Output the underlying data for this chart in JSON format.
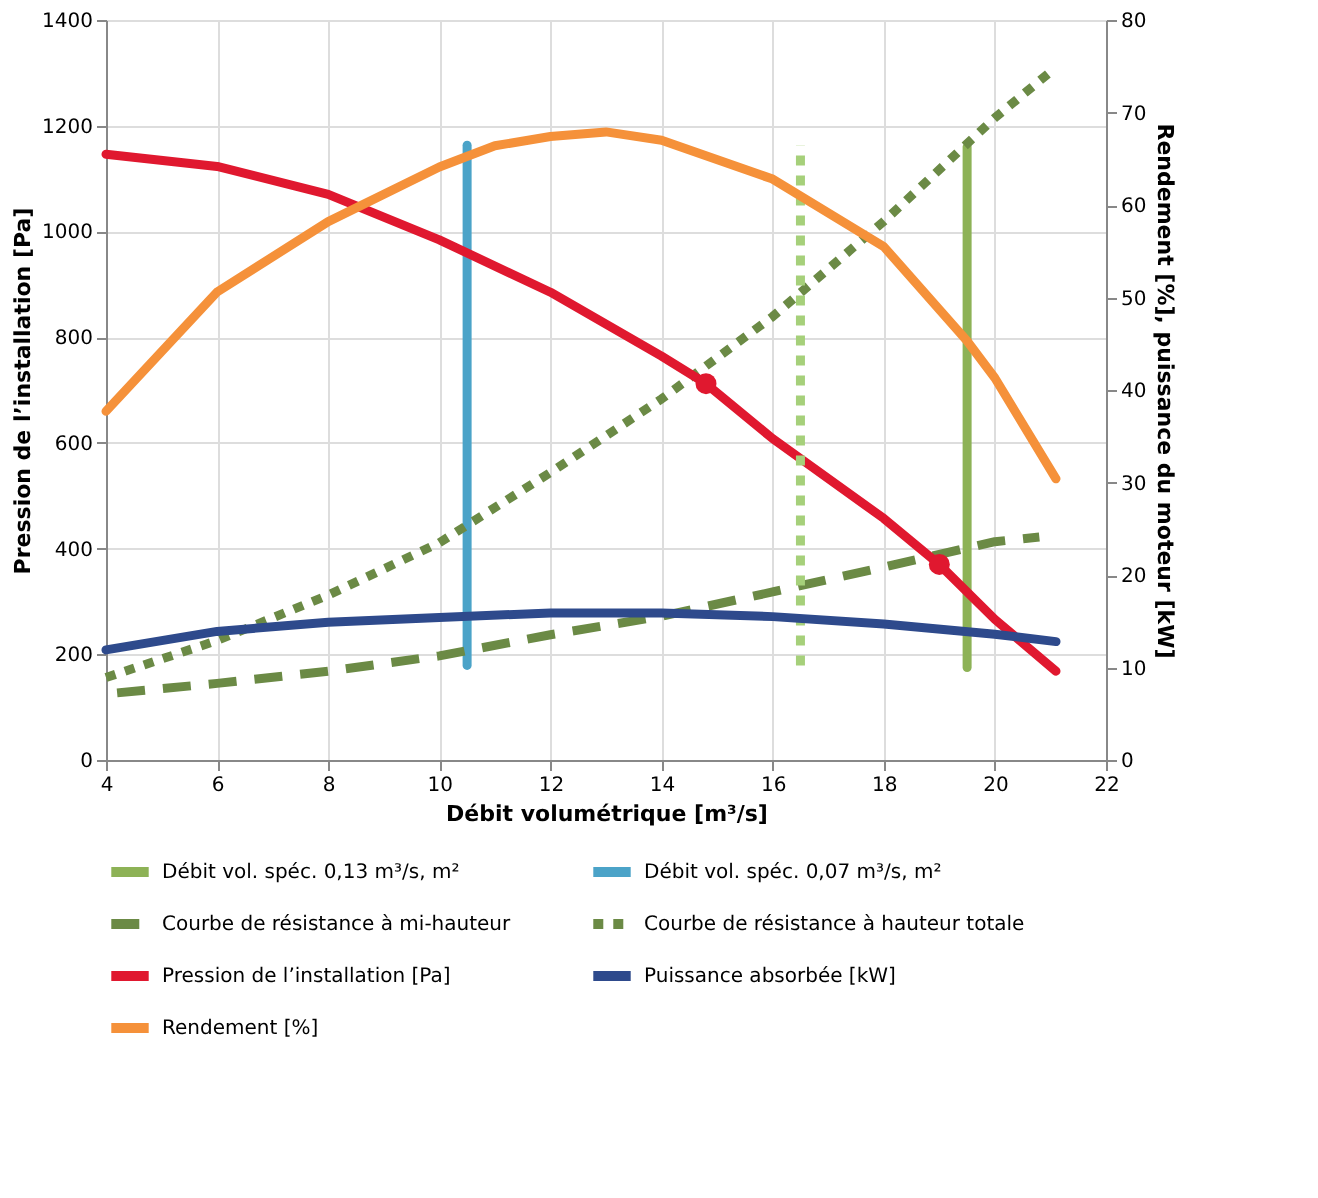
{
  "chart_data": {
    "type": "line",
    "xlabel": "Débit volumétrique [m³/s]",
    "ylabel": "Pression de l’installation [Pa]",
    "y2label": "Rendement [%], puissance du moteur [kW]",
    "xlim": [
      4,
      22
    ],
    "xticks": [
      4,
      6,
      8,
      10,
      12,
      14,
      16,
      18,
      20,
      22
    ],
    "ylim": [
      0,
      1400
    ],
    "yticks": [
      0,
      200,
      400,
      600,
      800,
      1000,
      1200,
      1400
    ],
    "y2lim": [
      0,
      80
    ],
    "y2ticks": [
      0,
      10,
      20,
      30,
      40,
      50,
      60,
      70,
      80
    ],
    "grid": true,
    "legend": "bottom",
    "series": [
      {
        "name": "Débit vol. spéc. 0,13 m³/s, m²",
        "color": "#8db256",
        "line_style": "solid",
        "x": [
          19.5,
          19.5
        ],
        "values": [
          175,
          1160
        ]
      },
      {
        "name": "Débit vol. spéc. 0,07 m³/s, m²",
        "color": "#4ba3c8",
        "line_style": "solid",
        "x": [
          10.5,
          10.5
        ],
        "values": [
          179,
          1163
        ]
      },
      {
        "name": "Courbe de résistance à mi-hauteur",
        "color": "#6b8a45",
        "line_style": "dashed",
        "x": [
          4.2,
          6,
          8,
          10,
          12,
          14,
          16,
          18,
          20,
          20.8
        ],
        "values": [
          127,
          145,
          168,
          197,
          237,
          272,
          318,
          365,
          413,
          422
        ]
      },
      {
        "name": "Courbe de résistance à hauteur totale",
        "color": "#6b8a45",
        "line_style": "dotted",
        "x": [
          4,
          6,
          8,
          10,
          12,
          14,
          16,
          18,
          20,
          21
        ],
        "values": [
          156,
          226,
          312,
          411,
          544,
          683,
          839,
          1019,
          1215,
          1302
        ]
      },
      {
        "name": "Pression de l’installation [Pa]",
        "color": "#e0182f",
        "line_style": "solid",
        "x": [
          4,
          6,
          8,
          10,
          12,
          14,
          14.8,
          16,
          18,
          19,
          20,
          21.1
        ],
        "values": [
          1146,
          1123,
          1070,
          984,
          885,
          764,
          712,
          608,
          457,
          370,
          266,
          168
        ]
      },
      {
        "name": "Puissance absorbée [kW]",
        "color": "#2e4a8c",
        "line_style": "solid",
        "axis": "y2",
        "x": [
          4,
          6,
          8,
          10,
          12,
          14,
          16,
          18,
          20,
          21.1
        ],
        "values": [
          11.9,
          13.9,
          14.9,
          15.4,
          15.9,
          15.9,
          15.5,
          14.7,
          13.6,
          12.8
        ]
      },
      {
        "name": "Rendement [%]",
        "color": "#f5913a",
        "line_style": "solid",
        "axis": "y2",
        "x": [
          4,
          6,
          8,
          10,
          11,
          12,
          13,
          14,
          16,
          18,
          19.5,
          20,
          21.1
        ],
        "values": [
          37.7,
          50.6,
          58.2,
          64.1,
          66.4,
          67.4,
          67.9,
          67.0,
          62.8,
          55.5,
          45.3,
          41.3,
          30.4
        ]
      },
      {
        "color": "#a6d07a",
        "line_style": "dotted",
        "x": [
          16.5,
          16.5
        ],
        "values": [
          179,
          1163
        ]
      },
      {
        "color": "#e0182f",
        "type": "scatter",
        "marker": "circle",
        "x": [
          14.8,
          19
        ],
        "values": [
          712,
          370
        ]
      }
    ]
  }
}
